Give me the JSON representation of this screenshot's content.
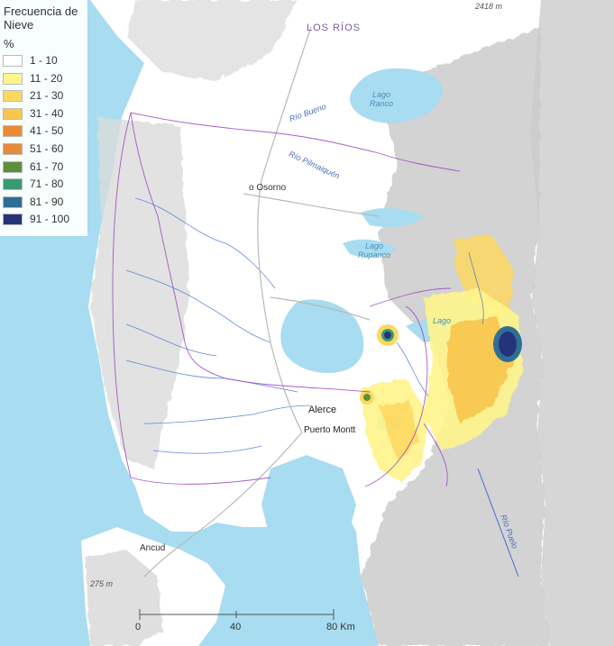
{
  "legend": {
    "title": "Frecuencia de Nieve",
    "unit": "%",
    "classes": [
      {
        "label": "1 - 10",
        "color": "#ffffff"
      },
      {
        "label": "11 - 20",
        "color": "#fff58c"
      },
      {
        "label": "21 - 30",
        "color": "#fdd860"
      },
      {
        "label": "31 - 40",
        "color": "#f9c64e"
      },
      {
        "label": "41 - 50",
        "color": "#eb8a33"
      },
      {
        "label": "51 - 60",
        "color": "#e48c3c"
      },
      {
        "label": "61 - 70",
        "color": "#5f8f3a"
      },
      {
        "label": "71 - 80",
        "color": "#3a9a6e"
      },
      {
        "label": "81 - 90",
        "color": "#2e6f96"
      },
      {
        "label": "91 - 100",
        "color": "#25347a"
      }
    ]
  },
  "labels": {
    "region": "LOS RÍOS",
    "elev_top": "2418 m",
    "elev_left": "275 m",
    "lago_ranco": "Lago Ranco",
    "lago_rupanco": "Lago Rupanco",
    "lago_llanquihue": "Lago",
    "rio_bueno": "Río Bueno",
    "rio_pilmaiquen": "Río Pilmaiquén",
    "rio_puelo": "Río Puelo",
    "osorno": "Osorno",
    "alerce": "Alerce",
    "puerto_montt": "Puerto Montt",
    "ancud": "Ancud"
  },
  "scale": {
    "ticks": [
      "0",
      "40",
      "80 Km"
    ]
  },
  "colors": {
    "water": "#a8dcf0",
    "land": "#ffffff",
    "terrain": "#cfcfcf",
    "boundary": "#9b3fbf",
    "rivers": "#3f6fcf",
    "roads": "#b9b9b9"
  }
}
